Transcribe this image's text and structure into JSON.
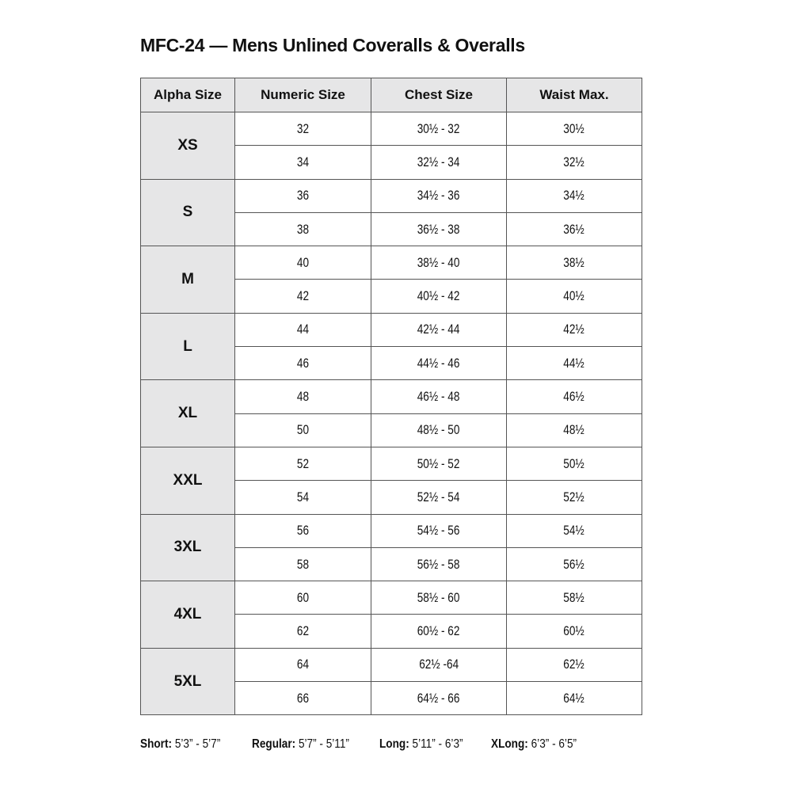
{
  "title": "MFC-24 — Mens Unlined Coveralls & Overalls",
  "table": {
    "headers": [
      "Alpha Size",
      "Numeric Size",
      "Chest Size",
      "Waist Max."
    ],
    "groups": [
      {
        "alpha": "XS",
        "rows": [
          [
            "32",
            "30½ - 32",
            "30½"
          ],
          [
            "34",
            "32½ - 34",
            "32½"
          ]
        ]
      },
      {
        "alpha": "S",
        "rows": [
          [
            "36",
            "34½ - 36",
            "34½"
          ],
          [
            "38",
            "36½ - 38",
            "36½"
          ]
        ]
      },
      {
        "alpha": "M",
        "rows": [
          [
            "40",
            "38½ - 40",
            "38½"
          ],
          [
            "42",
            "40½ - 42",
            "40½"
          ]
        ]
      },
      {
        "alpha": "L",
        "rows": [
          [
            "44",
            "42½ - 44",
            "42½"
          ],
          [
            "46",
            "44½ - 46",
            "44½"
          ]
        ]
      },
      {
        "alpha": "XL",
        "rows": [
          [
            "48",
            "46½ - 48",
            "46½"
          ],
          [
            "50",
            "48½ - 50",
            "48½"
          ]
        ]
      },
      {
        "alpha": "XXL",
        "rows": [
          [
            "52",
            "50½ - 52",
            "50½"
          ],
          [
            "54",
            "52½ - 54",
            "52½"
          ]
        ]
      },
      {
        "alpha": "3XL",
        "rows": [
          [
            "56",
            "54½ - 56",
            "54½"
          ],
          [
            "58",
            "56½ - 58",
            "56½"
          ]
        ]
      },
      {
        "alpha": "4XL",
        "rows": [
          [
            "60",
            "58½ - 60",
            "58½"
          ],
          [
            "62",
            "60½ - 62",
            "60½"
          ]
        ]
      },
      {
        "alpha": "5XL",
        "rows": [
          [
            "64",
            "62½  -64",
            "62½"
          ],
          [
            "66",
            "64½ - 66",
            "64½"
          ]
        ]
      }
    ]
  },
  "footer": [
    {
      "label": "Short:",
      "value": " 5’3” - 5’7”"
    },
    {
      "label": "Regular:",
      "value": " 5’7” - 5’11”"
    },
    {
      "label": "Long:",
      "value": " 5’11” - 6’3”"
    },
    {
      "label": "XLong:",
      "value": " 6’3” - 6’5”"
    }
  ]
}
